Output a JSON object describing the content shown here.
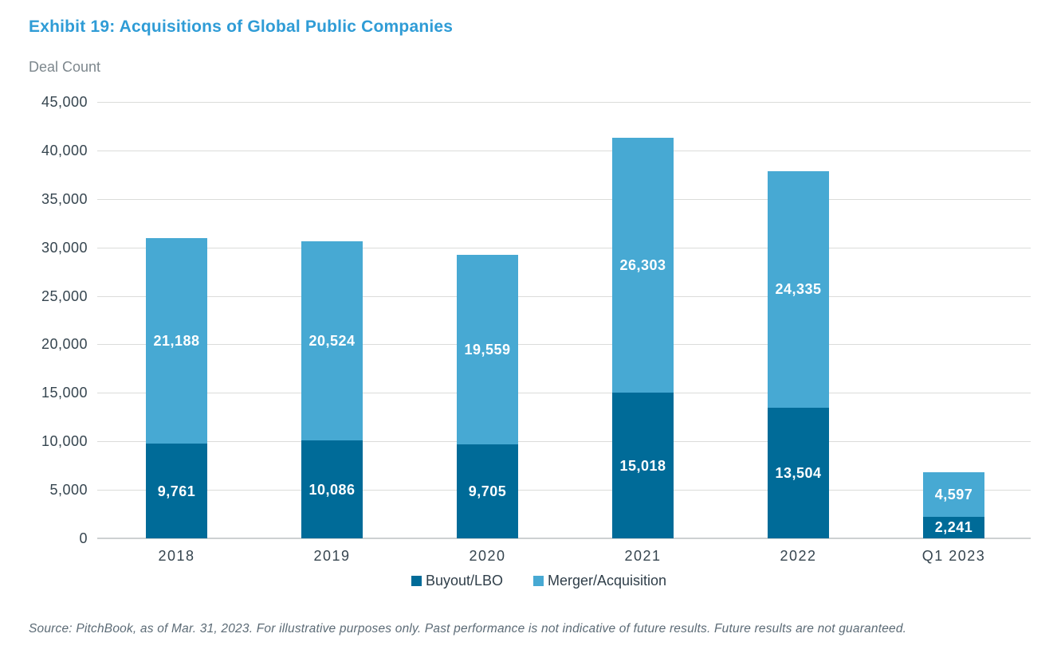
{
  "header": {
    "title": "Exhibit 19: Acquisitions of Global Public Companies"
  },
  "footer": {
    "text": "Source: PitchBook, as of Mar. 31, 2023. For illustrative purposes only. Past performance is not indicative of future results. Future results are not guaranteed."
  },
  "colors": {
    "title_blue": "#2f9cd6",
    "buyout_dark_blue": "#006b98",
    "merger_light_blue": "#47a9d3",
    "axis_text": "#36454f",
    "gridline": "#dbdcda",
    "value_label": "#ffffff"
  },
  "chart_data": {
    "type": "bar",
    "stacked": true,
    "title": "Exhibit 19: Acquisitions of Global Public Companies",
    "xlabel": "",
    "ylabel": "Deal Count",
    "categories": [
      "2018",
      "2019",
      "2020",
      "2021",
      "2022",
      "Q1 2023"
    ],
    "series": [
      {
        "name": "Buyout/LBO",
        "color": "#006b98",
        "values": [
          9761,
          10086,
          9705,
          15018,
          13504,
          2241
        ]
      },
      {
        "name": "Merger/Acquisition",
        "color": "#47a9d3",
        "values": [
          21188,
          20524,
          19559,
          26303,
          24335,
          4597
        ]
      }
    ],
    "ylim": [
      0,
      45000
    ],
    "ytick_step": 5000,
    "ytick_labels": [
      "0",
      "5,000",
      "10,000",
      "15,000",
      "20,000",
      "25,000",
      "30,000",
      "35,000",
      "40,000",
      "45,000"
    ],
    "grid": true,
    "legend_position": "bottom",
    "value_labels_in_segments": true
  }
}
